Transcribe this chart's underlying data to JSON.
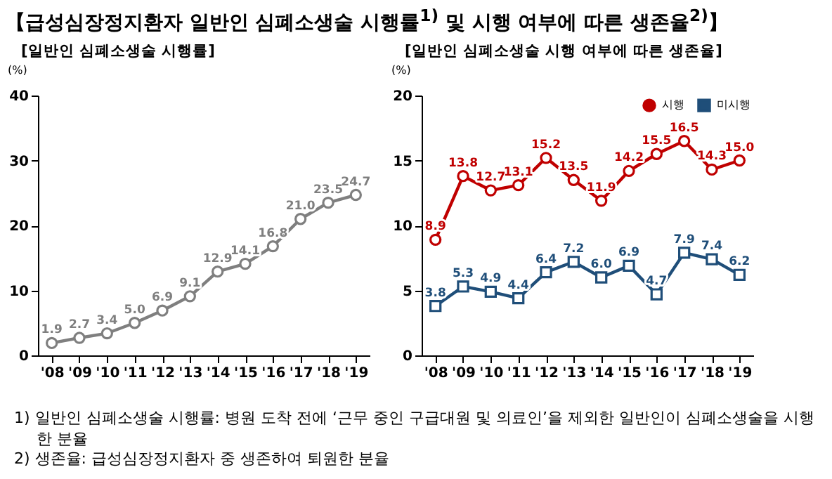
{
  "chart_data": [
    {
      "type": "line",
      "title": "【급성심장정지환자 일반인 심폐소생술 시행률$^{1)}$ 및 시행 여부에 따른 생존율$^{2)}$】",
      "subtitle": "[일반인 심폐소생술 시행률]",
      "ylabel": "(%)",
      "categories": [
        "'08",
        "'09",
        "'10",
        "'11",
        "'12",
        "'13",
        "'14",
        "'15",
        "'16",
        "'17",
        "'18",
        "'19"
      ],
      "series": [
        {
          "color": "#7f7f7f",
          "line_style": "solid",
          "values": [
            1.9,
            2.7,
            3.4,
            5.0,
            6.9,
            9.1,
            12.9,
            14.1,
            16.8,
            21.0,
            23.5,
            24.7
          ],
          "value_labels": [
            "1.9",
            "2.7",
            "3.4",
            "5.0",
            "6.9",
            "9.1",
            "12.9",
            "14.1",
            "16.8",
            "21.0",
            "23.5",
            "24.7"
          ]
        }
      ],
      "ylim": [
        0,
        40
      ],
      "yticks": [
        0,
        10,
        20,
        30,
        40
      ],
      "marker": "circle",
      "legend": false,
      "grid": false,
      "annotations": [
        "1) 일반인 심폐소생술 시행률: 병원 도착 전에 ‘근무 중인 구급대원 및 의료인’을 제외한 일반인이 심폐소생술을 시행한 분율",
        "2) 생존율: 급성심장정지환자 중 생존하여 퇴원한 분율"
      ]
    },
    {
      "type": "line",
      "subtitle": "[일반인 심폐소생술 시행 여부에 따른 생존율]",
      "ylabel": "(%)",
      "categories": [
        "'08",
        "'09",
        "'10",
        "'11",
        "'12",
        "'13",
        "'14",
        "'15",
        "'16",
        "'17",
        "'18",
        "'19"
      ],
      "series": [
        {
          "name": "시행",
          "color": "#c00000",
          "marker": "circle",
          "line_style": "solid",
          "values": [
            8.9,
            13.8,
            12.7,
            13.1,
            15.2,
            13.5,
            11.9,
            14.2,
            15.5,
            16.5,
            14.3,
            15.0
          ],
          "value_labels": [
            "8.9",
            "13.8",
            "12.7",
            "13.1",
            "15.2",
            "13.5",
            "11.9",
            "14.2",
            "15.5",
            "16.5",
            "14.3",
            "15.0"
          ]
        },
        {
          "name": "미시행",
          "color": "#1f4e79",
          "marker": "square",
          "line_style": "solid",
          "values": [
            3.8,
            5.3,
            4.9,
            4.4,
            6.4,
            7.2,
            6.0,
            6.9,
            4.7,
            7.9,
            7.4,
            6.2
          ],
          "value_labels": [
            "3.8",
            "5.3",
            "4.9",
            "4.4",
            "6.4",
            "7.2",
            "6.0",
            "6.9",
            "4.7",
            "7.9",
            "7.4",
            "6.2"
          ]
        }
      ],
      "ylim": [
        0,
        20
      ],
      "yticks": [
        0,
        5,
        10,
        15,
        20
      ],
      "legend": "top right",
      "grid": false
    }
  ]
}
